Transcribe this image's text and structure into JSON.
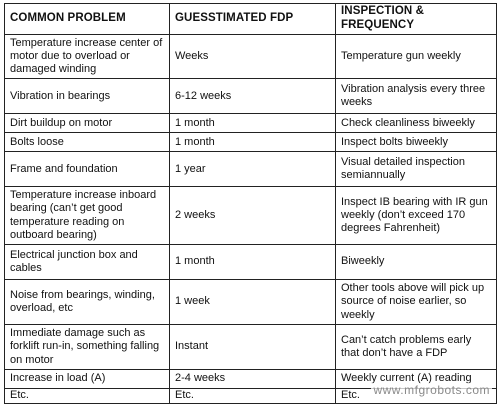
{
  "table": {
    "headers": [
      "COMMON PROBLEM",
      "GUESSTIMATED FDP",
      "INSPECTION & FREQUENCY"
    ],
    "rows": [
      [
        "Temperature increase center of motor due to overload or damaged winding",
        "Weeks",
        "Temperature gun weekly"
      ],
      [
        "Vibration in bearings",
        "6-12 weeks",
        "Vibration analysis every three weeks"
      ],
      [
        "Dirt buildup on motor",
        "1 month",
        "Check cleanliness biweekly"
      ],
      [
        "Bolts loose",
        "1 month",
        "Inspect bolts biweekly"
      ],
      [
        "Frame and foundation",
        "1 year",
        "Visual detailed inspection semiannually"
      ],
      [
        "Temperature increase inboard bearing (can’t get good temperature reading on outboard bearing)",
        "2 weeks",
        "Inspect IB bearing with IR gun weekly (don’t exceed 170 degrees Fahrenheit)"
      ],
      [
        "Electrical junction box and cables",
        "1 month",
        "Biweekly"
      ],
      [
        "Noise from bearings, winding, overload, etc",
        "1 week",
        "Other tools above will pick up source of noise earlier, so weekly"
      ],
      [
        "Immediate damage such as forklift run-in, something falling on motor",
        "Instant",
        "Can’t catch problems early that don’t have a FDP"
      ],
      [
        "Increase in load (A)",
        "2-4 weeks",
        "Weekly current (A) reading"
      ],
      [
        "Etc.",
        "Etc.",
        "Etc."
      ]
    ]
  },
  "watermark": "www.mfgrobots.com"
}
